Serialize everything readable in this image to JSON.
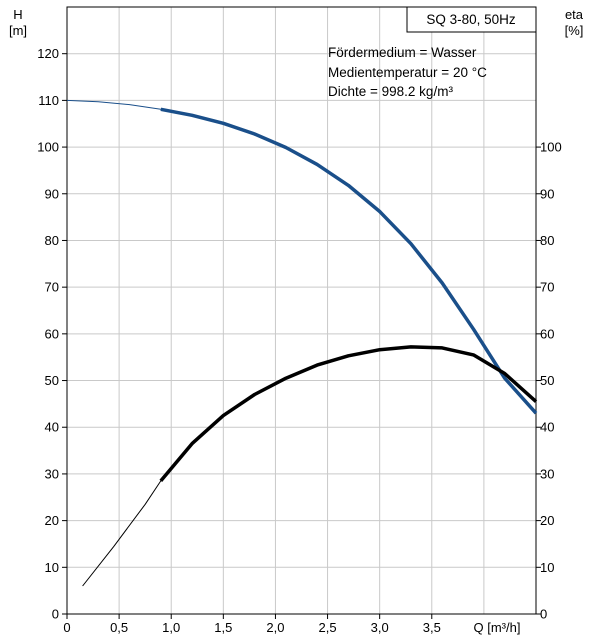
{
  "chart_data": {
    "type": "line",
    "title": "SQ 3-80, 50Hz",
    "annotations": [
      "Fördermedium = Wasser",
      "Medientemperatur = 20 °C",
      "Dichte = 998.2 kg/m³"
    ],
    "xlabel": "Q [m³/h]",
    "ylabel_left_name": "H",
    "ylabel_left_unit": "[m]",
    "ylabel_right_name": "eta",
    "ylabel_right_unit": "[%]",
    "xlim": [
      0,
      4.5
    ],
    "ylim": [
      0,
      130
    ],
    "x_ticks": [
      {
        "value": 0,
        "label": "0"
      },
      {
        "value": 0.5,
        "label": "0,5"
      },
      {
        "value": 1.0,
        "label": "1,0"
      },
      {
        "value": 1.5,
        "label": "1,5"
      },
      {
        "value": 2.0,
        "label": "2,0"
      },
      {
        "value": 2.5,
        "label": "2,5"
      },
      {
        "value": 3.0,
        "label": "3,0"
      },
      {
        "value": 3.5,
        "label": "3,5"
      }
    ],
    "y_left_ticks": [
      0,
      10,
      20,
      30,
      40,
      50,
      60,
      70,
      80,
      90,
      100,
      110,
      120
    ],
    "y_right_ticks": [
      0,
      10,
      20,
      30,
      40,
      50,
      60,
      70,
      80,
      90,
      100
    ],
    "grid": true,
    "series": [
      {
        "name": "H",
        "color": "#1a4f8a",
        "axis": "left",
        "x": [
          0.0,
          0.3,
          0.6,
          0.9,
          1.2,
          1.5,
          1.8,
          2.1,
          2.4,
          2.7,
          3.0,
          3.3,
          3.6,
          3.9,
          4.2,
          4.5
        ],
        "y": [
          110.0,
          109.7,
          109.1,
          108.1,
          106.8,
          105.1,
          102.8,
          99.9,
          96.3,
          91.8,
          86.2,
          79.3,
          70.9,
          61.0,
          50.5,
          43.0
        ],
        "duty_range": [
          0.9,
          4.5
        ]
      },
      {
        "name": "eta",
        "color": "#000000",
        "axis": "right",
        "x": [
          0.15,
          0.45,
          0.75,
          0.9,
          1.2,
          1.5,
          1.8,
          2.1,
          2.4,
          2.7,
          3.0,
          3.3,
          3.6,
          3.9,
          4.2,
          4.5
        ],
        "y": [
          6.0,
          14.5,
          23.5,
          28.5,
          36.5,
          42.5,
          47.0,
          50.5,
          53.3,
          55.3,
          56.6,
          57.2,
          57.0,
          55.5,
          51.5,
          45.5
        ],
        "duty_range": [
          0.9,
          4.5
        ]
      }
    ]
  }
}
